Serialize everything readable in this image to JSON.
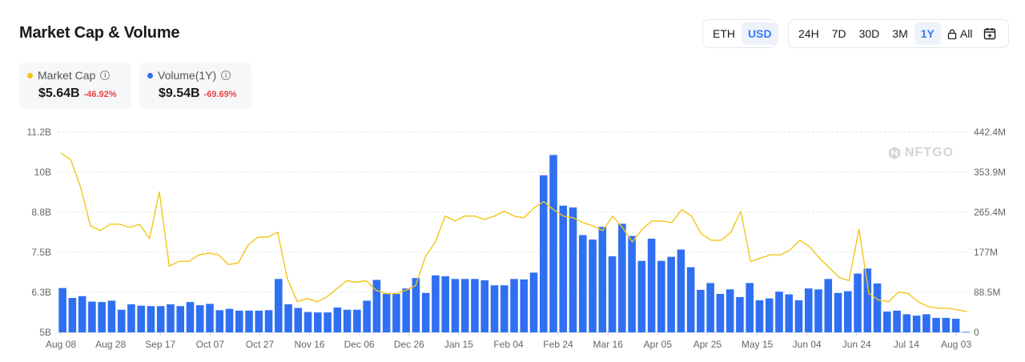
{
  "header": {
    "title": "Market Cap & Volume"
  },
  "currency_toggle": [
    {
      "label": "ETH",
      "active": false
    },
    {
      "label": "USD",
      "active": true
    }
  ],
  "range_toggle": [
    {
      "label": "24H",
      "active": false
    },
    {
      "label": "7D",
      "active": false
    },
    {
      "label": "30D",
      "active": false
    },
    {
      "label": "3M",
      "active": false
    },
    {
      "label": "1Y",
      "active": true
    },
    {
      "label": "All",
      "active": false,
      "icon": "lock-icon"
    }
  ],
  "calendar_icon": "calendar-icon",
  "legend_cards": [
    {
      "label": "Market Cap",
      "value": "$5.64B",
      "change": "-46.92%",
      "color": "#f5c518"
    },
    {
      "label": "Volume(1Y)",
      "value": "$9.54B",
      "change": "-69.69%",
      "color": "#2f6ff2"
    }
  ],
  "watermark": "NFTGO",
  "chart_data": {
    "type": "bar+line",
    "x_tick_labels": [
      "Aug 08",
      "Aug 28",
      "Sep 17",
      "Oct 07",
      "Oct 27",
      "Nov 16",
      "Dec 06",
      "Dec 26",
      "Jan 15",
      "Feb 04",
      "Feb 24",
      "Mar 16",
      "Apr 05",
      "Apr 25",
      "May 15",
      "Jun 04",
      "Jun 24",
      "Jul 14",
      "Aug 03"
    ],
    "y_left": {
      "ticks": [
        "5B",
        "6.3B",
        "7.5B",
        "8.8B",
        "10B",
        "11.2B"
      ],
      "min": 5,
      "max": 11.2,
      "unit": "B"
    },
    "y_right": {
      "ticks": [
        "0",
        "88.5M",
        "177M",
        "265.4M",
        "353.9M",
        "442.4M"
      ],
      "min": 0,
      "max": 442.4,
      "unit": "M"
    },
    "grid": "horizontal-dashed",
    "series": [
      {
        "name": "Market Cap",
        "kind": "line",
        "axis": "left",
        "color": "#f5c518",
        "values": [
          10.55,
          10.35,
          9.5,
          8.3,
          8.15,
          8.35,
          8.35,
          8.25,
          8.35,
          7.9,
          9.35,
          7.05,
          7.2,
          7.2,
          7.4,
          7.45,
          7.4,
          7.1,
          7.15,
          7.7,
          7.95,
          7.95,
          8.1,
          6.65,
          5.95,
          6.05,
          5.95,
          6.1,
          6.35,
          6.6,
          6.55,
          6.6,
          6.3,
          6.2,
          6.2,
          6.3,
          6.45,
          7.35,
          7.8,
          8.6,
          8.45,
          8.6,
          8.6,
          8.5,
          8.6,
          8.75,
          8.6,
          8.55,
          8.85,
          9.05,
          8.8,
          8.6,
          8.55,
          8.4,
          8.3,
          8.15,
          8.6,
          8.25,
          7.8,
          8.2,
          8.45,
          8.45,
          8.4,
          8.8,
          8.6,
          8.05,
          7.85,
          7.85,
          8.1,
          8.75,
          7.2,
          7.3,
          7.4,
          7.4,
          7.55,
          7.85,
          7.65,
          7.3,
          7.0,
          6.7,
          6.6,
          8.2,
          6.2,
          6.0,
          5.95,
          6.25,
          6.2,
          5.95,
          5.8,
          5.75,
          5.75,
          5.7,
          5.64
        ]
      },
      {
        "name": "Volume(1Y)",
        "kind": "bar",
        "axis": "right",
        "color": "#2f6ff2",
        "values": [
          98,
          76,
          80,
          68,
          67,
          70,
          50,
          62,
          59,
          58,
          58,
          62,
          58,
          67,
          60,
          63,
          49,
          52,
          48,
          48,
          48,
          49,
          118,
          62,
          54,
          45,
          44,
          44,
          55,
          50,
          50,
          70,
          116,
          85,
          85,
          97,
          120,
          87,
          126,
          124,
          118,
          118,
          118,
          115,
          104,
          104,
          118,
          117,
          132,
          347,
          392,
          280,
          276,
          215,
          205,
          233,
          168,
          240,
          213,
          158,
          207,
          158,
          167,
          183,
          144,
          94,
          109,
          85,
          95,
          78,
          109,
          71,
          75,
          90,
          84,
          71,
          97,
          95,
          118,
          87,
          91,
          130,
          141,
          108,
          46,
          48,
          40,
          37,
          40,
          32,
          32,
          30,
          1
        ]
      }
    ]
  }
}
